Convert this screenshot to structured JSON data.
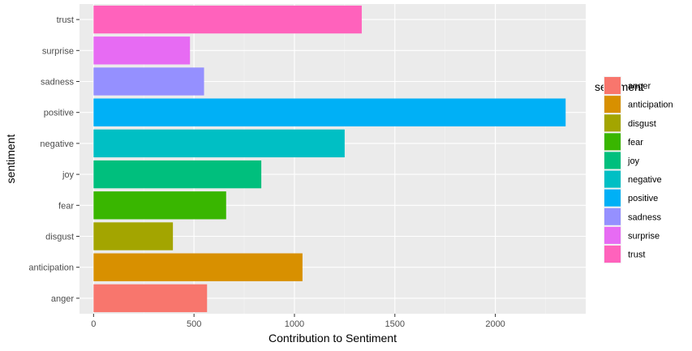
{
  "chart_data": {
    "type": "bar",
    "orientation": "horizontal",
    "categories": [
      "anger",
      "anticipation",
      "disgust",
      "fear",
      "joy",
      "negative",
      "positive",
      "sadness",
      "surprise",
      "trust"
    ],
    "values": [
      565,
      1040,
      395,
      660,
      835,
      1250,
      2350,
      550,
      480,
      1335
    ],
    "colors": [
      "#F8766D",
      "#D89000",
      "#A3A500",
      "#39B600",
      "#00BF7D",
      "#00BFC4",
      "#00B0F6",
      "#9590FF",
      "#E76BF3",
      "#FF62BC"
    ],
    "xlabel": "Contribution to Sentiment",
    "ylabel": "sentiment",
    "xlim": [
      -70,
      2450
    ],
    "xticks": [
      0,
      500,
      1000,
      1500,
      2000
    ],
    "grid": true,
    "legend": {
      "title": "sentiment",
      "placement": "right",
      "items": [
        "anger",
        "anticipation",
        "disgust",
        "fear",
        "joy",
        "negative",
        "positive",
        "sadness",
        "surprise",
        "trust"
      ]
    }
  }
}
